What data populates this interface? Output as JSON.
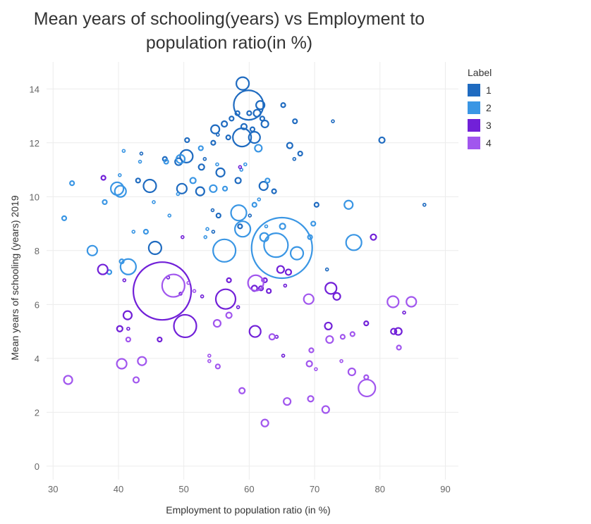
{
  "chart_data": {
    "type": "scatter",
    "title_line1": "Mean years of schooling(years) vs Employment to",
    "title_line2": "population ratio(in %)",
    "xlabel": "Employment to population ratio (in %)",
    "ylabel": "Mean years of schooling (years) 2019",
    "xlim": [
      29,
      92
    ],
    "ylim": [
      -0.5,
      15
    ],
    "xticks": [
      30,
      40,
      50,
      60,
      70,
      80,
      90
    ],
    "yticks": [
      0,
      2,
      4,
      6,
      8,
      10,
      12,
      14
    ],
    "grid": true,
    "legend_title": "Label",
    "legend_position": "right",
    "colors": {
      "1": "#1F6BC0",
      "2": "#3A96E4",
      "3": "#7120D8",
      "4": "#A156EE"
    },
    "series": [
      {
        "name": "1",
        "points": [
          [
            59,
            14.2,
            9
          ],
          [
            59.9,
            13.4,
            21
          ],
          [
            61.7,
            13.4,
            6
          ],
          [
            61.2,
            13.1,
            5
          ],
          [
            60,
            13.1,
            3
          ],
          [
            58.2,
            13.1,
            3
          ],
          [
            57.3,
            12.9,
            3
          ],
          [
            62,
            12.9,
            3
          ],
          [
            65.2,
            13.4,
            3
          ],
          [
            67,
            12.8,
            3
          ],
          [
            72.8,
            12.8,
            2
          ],
          [
            56.2,
            12.7,
            4
          ],
          [
            62.4,
            12.7,
            5
          ],
          [
            59.2,
            12.6,
            4
          ],
          [
            54.8,
            12.5,
            6
          ],
          [
            60.5,
            12.5,
            3
          ],
          [
            60.8,
            12.2,
            8
          ],
          [
            58.9,
            12.2,
            13
          ],
          [
            55.2,
            12.3,
            2
          ],
          [
            80.3,
            12.1,
            4
          ],
          [
            56.8,
            12.2,
            3
          ],
          [
            50.5,
            12.1,
            3
          ],
          [
            66.2,
            11.9,
            4
          ],
          [
            54.5,
            12.0,
            3
          ],
          [
            43.5,
            11.6,
            2
          ],
          [
            67.8,
            11.6,
            3
          ],
          [
            66.9,
            11.4,
            2
          ],
          [
            50.4,
            11.5,
            9
          ],
          [
            49.2,
            11.3,
            5
          ],
          [
            47.1,
            11.4,
            3
          ],
          [
            52.7,
            11.1,
            4
          ],
          [
            53.2,
            11.4,
            2
          ],
          [
            55.6,
            10.9,
            6
          ],
          [
            43,
            10.6,
            3
          ],
          [
            58.3,
            10.6,
            4
          ],
          [
            62.2,
            10.4,
            6
          ],
          [
            44.8,
            10.4,
            9
          ],
          [
            49.7,
            10.3,
            7
          ],
          [
            52.5,
            10.2,
            6
          ],
          [
            63.8,
            10.2,
            3
          ],
          [
            70.3,
            9.7,
            3
          ],
          [
            86.8,
            9.7,
            2
          ],
          [
            54.4,
            9.5,
            2
          ],
          [
            55.3,
            9.3,
            3
          ],
          [
            60.1,
            9.3,
            2
          ],
          [
            58.6,
            8.9,
            3
          ],
          [
            54.5,
            8.7,
            2
          ],
          [
            45.6,
            8.1,
            9
          ],
          [
            71.9,
            7.3,
            2
          ]
        ]
      },
      {
        "name": "2",
        "points": [
          [
            52.6,
            11.8,
            3
          ],
          [
            40.8,
            11.7,
            2
          ],
          [
            47.3,
            11.3,
            3
          ],
          [
            43.3,
            11.3,
            2
          ],
          [
            49.5,
            11.4,
            6
          ],
          [
            59.4,
            11.2,
            2
          ],
          [
            61.4,
            11.8,
            5
          ],
          [
            55.1,
            11.2,
            2
          ],
          [
            58.8,
            11.0,
            2
          ],
          [
            40.2,
            10.8,
            2
          ],
          [
            32.9,
            10.5,
            3
          ],
          [
            62.8,
            10.6,
            3
          ],
          [
            51.4,
            10.6,
            4
          ],
          [
            39.8,
            10.3,
            9
          ],
          [
            40.3,
            10.2,
            8
          ],
          [
            54.5,
            10.3,
            5
          ],
          [
            56.3,
            10.3,
            3
          ],
          [
            49.1,
            10.1,
            2
          ],
          [
            61.5,
            9.9,
            2
          ],
          [
            60.8,
            9.7,
            3
          ],
          [
            75.2,
            9.7,
            6
          ],
          [
            31.7,
            9.2,
            3
          ],
          [
            37.9,
            9.8,
            3
          ],
          [
            45.4,
            9.8,
            2
          ],
          [
            58.4,
            9.4,
            11
          ],
          [
            47.8,
            9.3,
            2
          ],
          [
            62.6,
            8.9,
            2
          ],
          [
            65.1,
            8.9,
            4
          ],
          [
            69.8,
            9.0,
            3
          ],
          [
            59,
            8.8,
            11
          ],
          [
            42.3,
            8.7,
            2
          ],
          [
            44.2,
            8.7,
            3
          ],
          [
            53.6,
            8.8,
            2
          ],
          [
            62.3,
            8.5,
            6
          ],
          [
            53.3,
            8.5,
            2
          ],
          [
            69.3,
            8.5,
            3
          ],
          [
            76,
            8.3,
            11
          ],
          [
            64.1,
            8.2,
            17
          ],
          [
            65,
            8.1,
            43
          ],
          [
            56.2,
            8.0,
            16
          ],
          [
            67.3,
            7.9,
            9
          ],
          [
            36,
            8.0,
            7
          ],
          [
            40.5,
            7.6,
            3
          ],
          [
            41.5,
            7.4,
            11
          ],
          [
            38.6,
            7.2,
            3
          ]
        ]
      },
      {
        "name": "3",
        "points": [
          [
            37.7,
            10.7,
            3
          ],
          [
            58.6,
            11.1,
            2
          ],
          [
            49.8,
            8.5,
            2
          ],
          [
            79,
            8.5,
            4
          ],
          [
            37.6,
            7.3,
            7
          ],
          [
            64.8,
            7.3,
            5
          ],
          [
            66,
            7.2,
            4
          ],
          [
            46.7,
            6.5,
            41
          ],
          [
            49.5,
            6.4,
            2
          ],
          [
            52.8,
            6.3,
            2
          ],
          [
            47.6,
            7.0,
            2
          ],
          [
            40.9,
            6.9,
            2
          ],
          [
            56.9,
            6.9,
            3
          ],
          [
            62.4,
            6.9,
            3
          ],
          [
            72.5,
            6.6,
            8
          ],
          [
            73.4,
            6.3,
            5
          ],
          [
            61.8,
            6.6,
            3
          ],
          [
            56.4,
            6.2,
            14
          ],
          [
            60.8,
            6.6,
            4
          ],
          [
            65.5,
            6.7,
            2
          ],
          [
            63,
            6.5,
            3
          ],
          [
            58.3,
            5.9,
            2
          ],
          [
            50.2,
            5.2,
            16
          ],
          [
            40.2,
            5.1,
            4
          ],
          [
            41.4,
            5.6,
            6
          ],
          [
            41.5,
            5.1,
            2
          ],
          [
            72.1,
            5.2,
            5
          ],
          [
            77.9,
            5.3,
            3
          ],
          [
            83.7,
            5.7,
            2
          ],
          [
            60.9,
            5.0,
            8
          ],
          [
            82.1,
            5.0,
            4
          ],
          [
            82.8,
            5.0,
            5
          ],
          [
            64.2,
            4.8,
            2
          ],
          [
            46.3,
            4.7,
            3
          ],
          [
            65.2,
            4.1,
            2
          ]
        ]
      },
      {
        "name": "4",
        "points": [
          [
            48.4,
            6.7,
            16
          ],
          [
            61,
            6.8,
            11
          ],
          [
            62.1,
            6.9,
            2
          ],
          [
            56.9,
            5.6,
            4
          ],
          [
            55.1,
            5.3,
            5
          ],
          [
            69.1,
            6.2,
            7
          ],
          [
            82,
            6.1,
            8
          ],
          [
            84.8,
            6.1,
            7
          ],
          [
            50.7,
            6.8,
            2
          ],
          [
            51.6,
            6.5,
            2
          ],
          [
            41.5,
            4.7,
            3
          ],
          [
            63.5,
            4.8,
            4
          ],
          [
            72.3,
            4.7,
            5
          ],
          [
            74.3,
            4.8,
            3
          ],
          [
            75.8,
            4.9,
            3
          ],
          [
            82.9,
            4.4,
            3
          ],
          [
            69.5,
            4.3,
            3
          ],
          [
            53.9,
            4.1,
            2
          ],
          [
            53.9,
            3.9,
            2
          ],
          [
            55.2,
            3.7,
            3
          ],
          [
            40.5,
            3.8,
            7
          ],
          [
            43.6,
            3.9,
            6
          ],
          [
            69.2,
            3.8,
            4
          ],
          [
            70.2,
            3.6,
            2
          ],
          [
            74.1,
            3.9,
            2
          ],
          [
            75.7,
            3.5,
            5
          ],
          [
            32.3,
            3.2,
            6
          ],
          [
            42.7,
            3.2,
            4
          ],
          [
            77.9,
            3.3,
            3
          ],
          [
            78,
            2.9,
            12
          ],
          [
            58.9,
            2.8,
            4
          ],
          [
            69.4,
            2.5,
            4
          ],
          [
            65.8,
            2.4,
            5
          ],
          [
            71.7,
            2.1,
            5
          ],
          [
            62.4,
            1.6,
            5
          ]
        ]
      }
    ]
  }
}
